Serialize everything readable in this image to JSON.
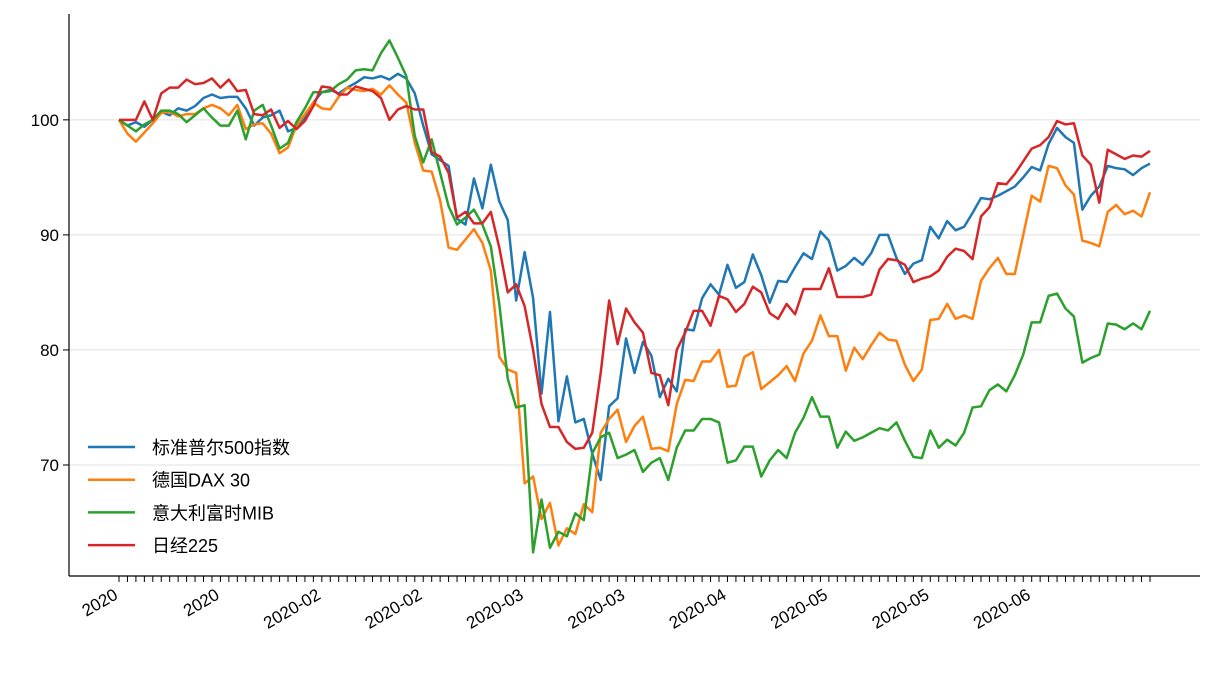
{
  "chart_data": {
    "type": "line",
    "categories": [
      "2020",
      null,
      null,
      null,
      null,
      null,
      null,
      null,
      null,
      null,
      null,
      null,
      "2020",
      null,
      null,
      null,
      null,
      null,
      null,
      null,
      null,
      null,
      null,
      null,
      "2020-02",
      null,
      null,
      null,
      null,
      null,
      null,
      null,
      null,
      null,
      null,
      null,
      "2020-02",
      null,
      null,
      null,
      null,
      null,
      null,
      null,
      null,
      null,
      null,
      null,
      "2020-03",
      null,
      null,
      null,
      null,
      null,
      null,
      null,
      null,
      null,
      null,
      null,
      "2020-03",
      null,
      null,
      null,
      null,
      null,
      null,
      null,
      null,
      null,
      null,
      null,
      "2020-04",
      null,
      null,
      null,
      null,
      null,
      null,
      null,
      null,
      null,
      null,
      null,
      "2020-05",
      null,
      null,
      null,
      null,
      null,
      null,
      null,
      null,
      null,
      null,
      null,
      "2020-05",
      null,
      null,
      null,
      null,
      null,
      null,
      null,
      null,
      null,
      null,
      null,
      "2020-06",
      null,
      null,
      null,
      null,
      null,
      null,
      null,
      null,
      null,
      null,
      null,
      null,
      null,
      null
    ],
    "series": [
      {
        "name": "标准普尔500指数",
        "color": "#1f77b4",
        "values": [
          100,
          99.5,
          99.8,
          99.4,
          100,
          100.7,
          100.4,
          101,
          100.8,
          101.2,
          101.9,
          102.2,
          101.9,
          102,
          102,
          101,
          99.5,
          100.2,
          100.4,
          100.8,
          99,
          99.3,
          100.2,
          101.5,
          102.4,
          102.6,
          102.3,
          102.8,
          103.2,
          103.7,
          103.6,
          103.8,
          103.5,
          104,
          103.6,
          102.3,
          99.5,
          97,
          96.5,
          96,
          91.4,
          90.9,
          94.9,
          92.3,
          96.1,
          92.9,
          91.3,
          84.3,
          88.5,
          84.5,
          76.2,
          83.3,
          73.8,
          77.7,
          73.7,
          74,
          71,
          68.7,
          75.1,
          75.8,
          81,
          78,
          80.7,
          79.5,
          75.9,
          77.5,
          76.4,
          81.8,
          81.7,
          84.5,
          85.7,
          84.8,
          87.4,
          85.4,
          85.9,
          88.3,
          86.5,
          84.1,
          86,
          85.9,
          87.2,
          88.4,
          87.9,
          90.3,
          89.5,
          86.9,
          87.3,
          88,
          87.4,
          88.4,
          90,
          90,
          88,
          86.6,
          87.5,
          87.8,
          90.7,
          89.7,
          91.2,
          90.4,
          90.7,
          91.9,
          93.2,
          93.1,
          93.4,
          93.8,
          94.2,
          95,
          95.9,
          95.6,
          97.9,
          99.3,
          98.5,
          98,
          92.2,
          93.4,
          94.2,
          96,
          95.8,
          95.7,
          95.2,
          95.8,
          96.2
        ]
      },
      {
        "name": "德国DAX 30",
        "color": "#ff7f0e",
        "values": [
          100,
          98.8,
          98.1,
          98.9,
          99.7,
          100.6,
          100.7,
          100.3,
          100.5,
          100.5,
          101,
          101.3,
          101,
          100.4,
          101.3,
          99.2,
          99.6,
          99.7,
          98.8,
          97.1,
          97.6,
          99.5,
          100.5,
          101.5,
          101,
          100.9,
          102,
          102.8,
          102.6,
          102.5,
          102.7,
          102.2,
          103,
          102.2,
          101.5,
          98,
          95.6,
          95.5,
          93,
          88.9,
          88.7,
          89.6,
          90.5,
          89.3,
          86.9,
          79.4,
          78.3,
          78,
          68.4,
          69,
          65.3,
          66.7,
          63,
          64.5,
          64.0,
          66.6,
          65.9,
          72.8,
          74,
          74.8,
          72,
          73.4,
          74.2,
          71.4,
          71.5,
          71.2,
          75.3,
          77.4,
          77.3,
          79,
          79,
          80,
          76.8,
          76.9,
          79.4,
          79.8,
          76.6,
          77.2,
          77.8,
          78.6,
          77.3,
          79.7,
          80.8,
          83,
          81.2,
          81.2,
          78.2,
          80.2,
          79.2,
          80.4,
          81.5,
          80.9,
          80.8,
          78.7,
          77.3,
          78.3,
          82.6,
          82.7,
          84,
          82.7,
          83.0,
          82.7,
          86,
          87.1,
          88,
          86.6,
          86.6,
          90,
          93.4,
          92.9,
          96,
          95.8,
          94.3,
          93.5,
          89.5,
          89.3,
          89,
          92,
          92.6,
          91.8,
          92.1,
          91.6,
          93.7
        ]
      },
      {
        "name": "意大利富时MIB",
        "color": "#2ca02c",
        "values": [
          100,
          99.5,
          99,
          99.6,
          100,
          100.8,
          100.8,
          100.5,
          99.8,
          100.4,
          101,
          100.2,
          99.5,
          99.5,
          100.8,
          98.3,
          100.8,
          101.3,
          99.5,
          97.5,
          98,
          99.8,
          101,
          102.4,
          102.4,
          102.5,
          103.1,
          103.5,
          104.3,
          104.4,
          104.3,
          105.8,
          106.9,
          105.4,
          103.8,
          98.6,
          96.3,
          98.3,
          95.4,
          92.5,
          90.9,
          91.5,
          92.2,
          90.9,
          89,
          84,
          77.5,
          75,
          75.2,
          62.4,
          67,
          62.8,
          64.2,
          63.8,
          65.8,
          65.2,
          71,
          72.4,
          72.8,
          70.6,
          70.9,
          71.3,
          69.4,
          70.2,
          70.6,
          68.7,
          71.5,
          73,
          73,
          74,
          74,
          73.7,
          70.2,
          70.4,
          71.6,
          71.6,
          69,
          70.4,
          71.3,
          70.6,
          72.8,
          74.1,
          75.9,
          74.2,
          74.2,
          71.5,
          72.9,
          72.1,
          72.4,
          72.8,
          73.2,
          73,
          73.7,
          72.1,
          70.7,
          70.6,
          73,
          71.5,
          72.2,
          71.7,
          72.8,
          75,
          75.1,
          76.5,
          77,
          76.4,
          77.8,
          79.6,
          82.4,
          82.4,
          84.7,
          84.9,
          83.6,
          82.9,
          78.9,
          79.3,
          79.6,
          82.3,
          82.2,
          81.8,
          82.3,
          81.8,
          83.4
        ]
      },
      {
        "name": "日经225",
        "color": "#d62728",
        "values": [
          100,
          100,
          100,
          101.6,
          100,
          102.3,
          102.8,
          102.8,
          103.5,
          103.1,
          103.2,
          103.6,
          102.8,
          103.5,
          102.5,
          102.6,
          100.5,
          100.4,
          100.9,
          99.3,
          99.9,
          99.2,
          99.9,
          101.2,
          102.9,
          102.8,
          102.2,
          102.2,
          102.9,
          102.7,
          102.5,
          101.9,
          100,
          100.9,
          101.2,
          100.9,
          100.9,
          97.2,
          96.8,
          95.4,
          91.5,
          92,
          91,
          91,
          92,
          88.9,
          85,
          85.7,
          83.8,
          80,
          75.3,
          73.3,
          73.3,
          72,
          71.4,
          71.5,
          72.8,
          78,
          84.3,
          80.5,
          83.6,
          82.4,
          81.5,
          78,
          77.8,
          75.2,
          80,
          81.5,
          83.4,
          83.4,
          82.1,
          84.7,
          84.4,
          83.3,
          84.0,
          85.5,
          85,
          83.2,
          82.7,
          84,
          83.1,
          85.3,
          85.3,
          85.3,
          87.1,
          84.6,
          84.6,
          84.6,
          84.6,
          84.8,
          87,
          87.9,
          87.8,
          87.4,
          85.9,
          86.2,
          86.4,
          86.9,
          88.1,
          88.8,
          88.6,
          87.9,
          91.6,
          92.4,
          94.5,
          94.4,
          95.3,
          96.4,
          97.5,
          97.8,
          98.5,
          99.9,
          99.6,
          99.7,
          96.9,
          96.1,
          92.8,
          97.4,
          97,
          96.6,
          96.9,
          96.8,
          97.3
        ]
      }
    ],
    "ylim": [
      60.35,
      109.2
    ],
    "yticks": [
      70,
      80,
      90,
      100
    ],
    "grid": "y",
    "legend": "lower left"
  }
}
